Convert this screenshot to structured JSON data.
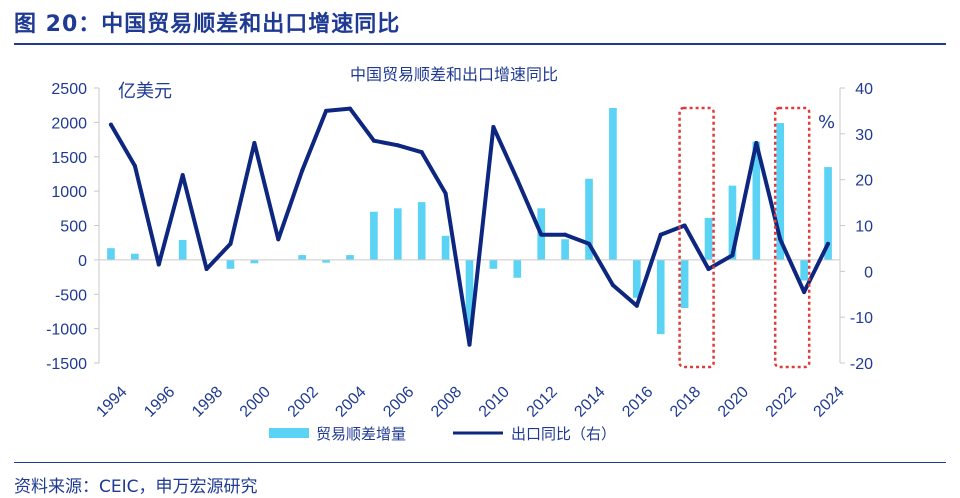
{
  "figure": {
    "title": "图 20：中国贸易顺差和出口增速同比",
    "source": "资料来源：CEIC，申万宏源研究"
  },
  "colors": {
    "bar": "#5bd3f5",
    "line": "#0d2680",
    "text": "#1f3a93",
    "highlight": "#e03a3a"
  },
  "chart_data": {
    "type": "bar+line",
    "title": "中国贸易顺差和出口增速同比",
    "left_unit": "亿美元",
    "right_unit": "%",
    "years": [
      1994,
      1995,
      1996,
      1997,
      1998,
      1999,
      2000,
      2001,
      2002,
      2003,
      2004,
      2005,
      2006,
      2007,
      2008,
      2009,
      2010,
      2011,
      2012,
      2013,
      2014,
      2015,
      2016,
      2017,
      2018,
      2019,
      2020,
      2021,
      2022,
      2023,
      2024
    ],
    "x_tick_labels": [
      "1994",
      "1996",
      "1998",
      "2000",
      "2002",
      "2004",
      "2006",
      "2008",
      "2010",
      "2012",
      "2014",
      "2016",
      "2018",
      "2020",
      "2022",
      "2024"
    ],
    "left_axis": {
      "min": -1500,
      "max": 2500,
      "ticks": [
        -1500,
        -1000,
        -500,
        0,
        500,
        1000,
        1500,
        2000,
        2500
      ]
    },
    "right_axis": {
      "min": -20,
      "max": 40,
      "ticks": [
        -20,
        -10,
        0,
        10,
        20,
        30,
        40
      ]
    },
    "series": [
      {
        "name": "贸易顺差增量",
        "type": "bar",
        "axis": "left",
        "values": [
          170,
          90,
          0,
          290,
          0,
          -130,
          -50,
          0,
          70,
          -40,
          70,
          700,
          750,
          840,
          350,
          -1000,
          -130,
          -260,
          750,
          300,
          1180,
          2210,
          -550,
          -1080,
          -700,
          610,
          1080,
          1720,
          1990,
          -300,
          1350
        ]
      },
      {
        "name": "出口同比（右）",
        "type": "line",
        "axis": "right",
        "values": [
          32,
          23,
          1.5,
          21,
          0.5,
          6,
          28,
          7,
          22,
          35,
          35.5,
          28.5,
          27.5,
          26,
          17,
          -16,
          31.5,
          20,
          8,
          8,
          6,
          -3,
          -7.5,
          8,
          10,
          0.5,
          3.5,
          28,
          7,
          -4.5,
          6
        ]
      }
    ],
    "highlighted_years": [
      2018,
      2022
    ]
  }
}
